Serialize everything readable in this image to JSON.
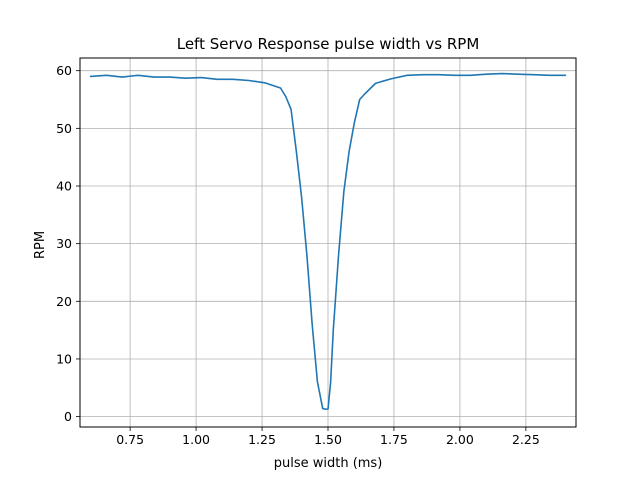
{
  "chart_data": {
    "type": "line",
    "title": "Left Servo Response pulse width vs RPM",
    "xlabel": "pulse width (ms)",
    "ylabel": "RPM",
    "xlim": [
      0.56,
      2.44
    ],
    "ylim": [
      -1.8,
      62.2
    ],
    "xticks": [
      0.75,
      1.0,
      1.25,
      1.5,
      1.75,
      2.0,
      2.25
    ],
    "xtick_labels": [
      "0.75",
      "1.00",
      "1.25",
      "1.50",
      "1.75",
      "2.00",
      "2.25"
    ],
    "yticks": [
      0,
      10,
      20,
      30,
      40,
      50,
      60
    ],
    "ytick_labels": [
      "0",
      "10",
      "20",
      "30",
      "40",
      "50",
      "60"
    ],
    "grid": true,
    "series": [
      {
        "color": "#1f77b4",
        "x": [
          0.6,
          0.66,
          0.72,
          0.78,
          0.84,
          0.9,
          0.96,
          1.02,
          1.08,
          1.14,
          1.2,
          1.26,
          1.32,
          1.34,
          1.36,
          1.38,
          1.4,
          1.42,
          1.44,
          1.46,
          1.48,
          1.49,
          1.5,
          1.51,
          1.52,
          1.54,
          1.56,
          1.58,
          1.6,
          1.62,
          1.64,
          1.68,
          1.74,
          1.8,
          1.86,
          1.92,
          1.98,
          2.04,
          2.1,
          2.16,
          2.22,
          2.28,
          2.34,
          2.4
        ],
        "y": [
          59.0,
          59.2,
          58.9,
          59.2,
          58.9,
          58.9,
          58.7,
          58.8,
          58.5,
          58.5,
          58.3,
          57.9,
          57.0,
          55.5,
          53.3,
          46.0,
          38.0,
          28.0,
          16.0,
          6.0,
          1.4,
          1.3,
          1.3,
          6.0,
          15.0,
          28.0,
          39.0,
          46.0,
          51.0,
          55.0,
          56.0,
          57.8,
          58.6,
          59.2,
          59.3,
          59.3,
          59.2,
          59.2,
          59.4,
          59.5,
          59.4,
          59.3,
          59.2,
          59.2
        ]
      }
    ]
  }
}
